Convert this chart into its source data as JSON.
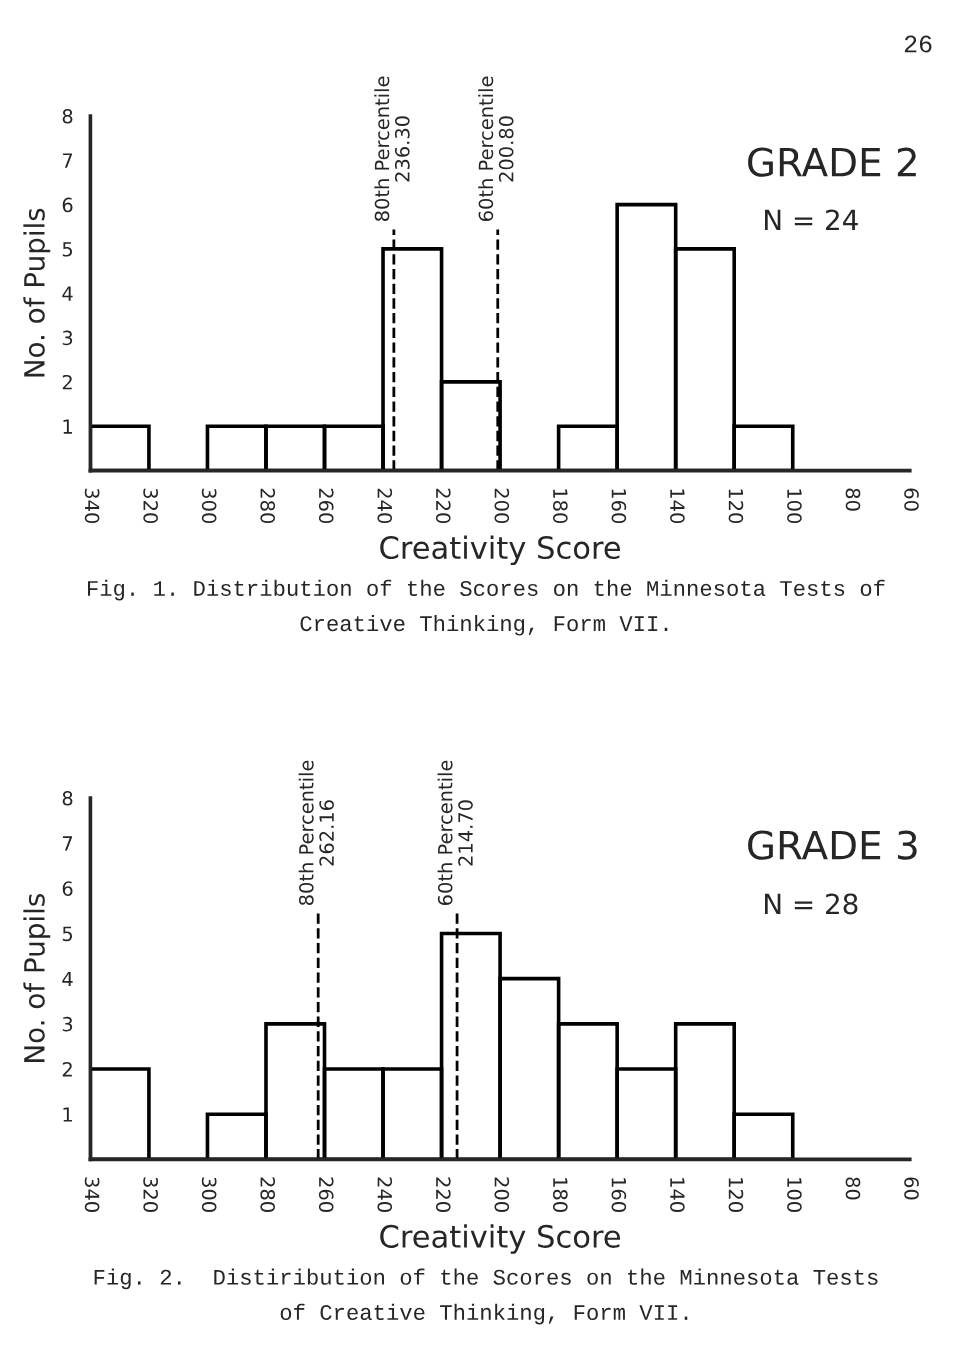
{
  "chart_data": [
    {
      "type": "histogram",
      "xlabel": "Creativity Score",
      "ylabel": "No. of Pupils",
      "color": "#000000",
      "bins": [
        340,
        320,
        300,
        280,
        260,
        240,
        220,
        200,
        180,
        160,
        140,
        120,
        100
      ],
      "values": [
        1,
        0,
        1,
        1,
        1,
        5,
        2,
        0,
        1,
        6,
        5,
        1
      ],
      "xlim": [
        340,
        60
      ],
      "xticks": [
        340,
        320,
        300,
        280,
        260,
        240,
        220,
        200,
        180,
        160,
        140,
        120,
        100,
        80,
        60
      ],
      "ylim": [
        0,
        8
      ],
      "yticks": [
        1,
        2,
        3,
        4,
        5,
        6,
        7,
        8
      ],
      "ref_lines": [
        {
          "axis": "x",
          "value": 236.3,
          "label": "80th Percentile\n236.30",
          "line_style": "dashed",
          "color": "#000000"
        },
        {
          "axis": "x",
          "value": 200.8,
          "label": "60th Percentile\n200.80",
          "line_style": "dashed",
          "color": "#000000"
        }
      ],
      "annotations": [
        "26",
        "GRADE 2",
        "N = 24",
        "Fig. 1. Distribution of the Scores on the Minnesota Tests of\nCreative Thinking, Form VII."
      ]
    },
    {
      "type": "histogram",
      "xlabel": "Creativity Score",
      "ylabel": "No. of Pupils",
      "color": "#000000",
      "bins": [
        340,
        320,
        300,
        280,
        260,
        240,
        220,
        200,
        180,
        160,
        140,
        120,
        100
      ],
      "values": [
        2,
        0,
        1,
        3,
        2,
        2,
        5,
        4,
        3,
        2,
        3,
        1
      ],
      "xlim": [
        340,
        60
      ],
      "xticks": [
        340,
        320,
        300,
        280,
        260,
        240,
        220,
        200,
        180,
        160,
        140,
        120,
        100,
        80,
        60
      ],
      "ylim": [
        0,
        8
      ],
      "yticks": [
        1,
        2,
        3,
        4,
        5,
        6,
        7,
        8
      ],
      "ref_lines": [
        {
          "axis": "x",
          "value": 262.16,
          "label": "80th Percentile\n262.16",
          "line_style": "dashed",
          "color": "#000000"
        },
        {
          "axis": "x",
          "value": 214.7,
          "label": "60th Percentile\n214.70",
          "line_style": "dashed",
          "color": "#000000"
        }
      ],
      "annotations": [
        "GRADE 3",
        "N = 28",
        "Fig. 2.  Distiribution of the Scores on the Minnesota Tests\nof Creative Thinking, Form VII."
      ]
    }
  ]
}
